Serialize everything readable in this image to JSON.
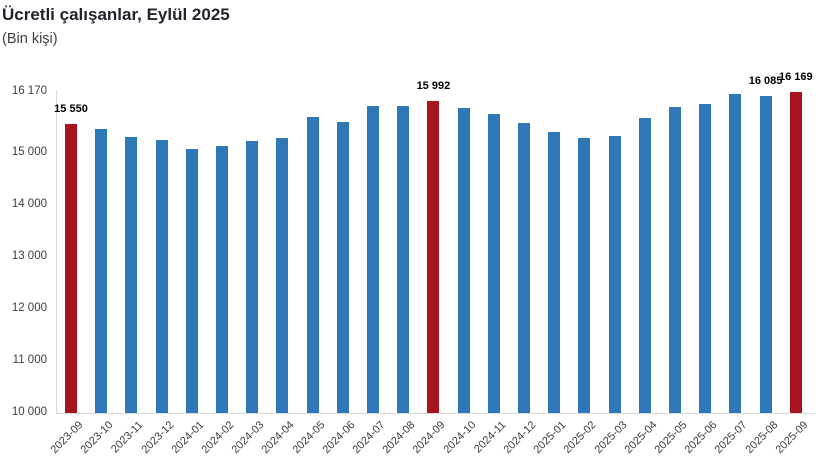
{
  "chart_data": {
    "type": "bar",
    "title": "Ücretli çalışanlar, Eylül 2025",
    "subtitle": "(Bin kişi)",
    "xlabel": "",
    "ylabel": "",
    "categories": [
      "2023-09",
      "2023-10",
      "2023-11",
      "2023-12",
      "2024-01",
      "2024-02",
      "2024-03",
      "2024-04",
      "2024-05",
      "2024-06",
      "2024-07",
      "2024-08",
      "2024-09",
      "2024-10",
      "2024-11",
      "2024-12",
      "2025-01",
      "2025-02",
      "2025-03",
      "2025-04",
      "2025-05",
      "2025-06",
      "2025-07",
      "2025-08",
      "2025-09"
    ],
    "values": [
      15550,
      15455,
      15300,
      15240,
      15070,
      15125,
      15220,
      15280,
      15685,
      15590,
      15895,
      15895,
      15992,
      15855,
      15740,
      15570,
      15395,
      15280,
      15320,
      15665,
      15875,
      15930,
      16125,
      16085,
      16169
    ],
    "highlight_indices": [
      0,
      12,
      24
    ],
    "value_labels": [
      {
        "index": 0,
        "text": "15 550"
      },
      {
        "index": 12,
        "text": "15 992"
      },
      {
        "index": 23,
        "text": "16 085"
      },
      {
        "index": 24,
        "text": "16 169"
      }
    ],
    "ylim": [
      10000,
      16170
    ],
    "yticks": [
      {
        "value": 16170,
        "label": "16 170"
      },
      {
        "value": 15000,
        "label": "15 000"
      },
      {
        "value": 14000,
        "label": "14 000"
      },
      {
        "value": 13000,
        "label": "13 000"
      },
      {
        "value": 12000,
        "label": "12 000"
      },
      {
        "value": 11000,
        "label": "11 000"
      },
      {
        "value": 10000,
        "label": "10 000"
      }
    ],
    "grid": false,
    "legend": false,
    "colors": {
      "bar": "#2E78B8",
      "highlight": "#A8141E",
      "axis": "#D9D9D9",
      "tick_label": "#3D3D3D",
      "value_label": "#000000",
      "title": "#21242E"
    }
  }
}
